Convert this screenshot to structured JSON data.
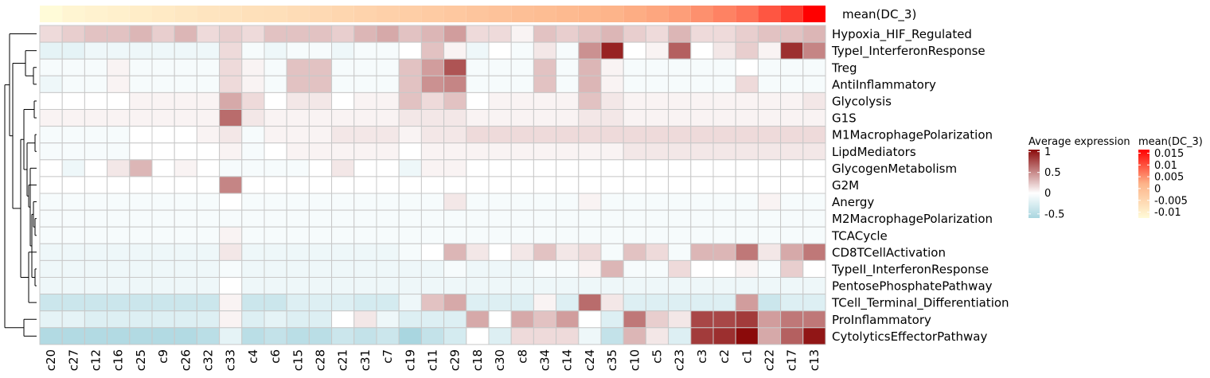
{
  "chart_data": {
    "type": "heatmap",
    "annotation_row_label": "mean(DC_3)",
    "columns": [
      "c20",
      "c27",
      "c12",
      "c16",
      "c25",
      "c9",
      "c26",
      "c32",
      "c33",
      "c4",
      "c6",
      "c15",
      "c28",
      "c21",
      "c31",
      "c7",
      "c19",
      "c11",
      "c29",
      "c18",
      "c30",
      "c8",
      "c34",
      "c14",
      "c24",
      "c35",
      "c10",
      "c5",
      "c23",
      "c3",
      "c2",
      "c1",
      "c22",
      "c17",
      "c13"
    ],
    "rows": [
      "Hypoxia_HIF_Regulated",
      "TypeI_InterferonResponse",
      "Treg",
      "AntiInflammatory",
      "Glycolysis",
      "G1S",
      "M1MacrophagePolarization",
      "LipdMediators",
      "GlycogenMetabolism",
      "G2M",
      "Anergy",
      "M2MacrophagePolarization",
      "TCACycle",
      "CD8TCellActivation",
      "TypeII_InterferonResponse",
      "PentosePhosphatePathway",
      "TCell_Terminal_Differentiation",
      "ProInflammatory",
      "CytolyticsEffectorPathway"
    ],
    "annotation_values": [
      -0.012,
      -0.011,
      -0.0105,
      -0.01,
      -0.0095,
      -0.009,
      -0.0085,
      -0.008,
      -0.0078,
      -0.0072,
      -0.007,
      -0.0065,
      -0.006,
      -0.0055,
      -0.005,
      -0.0045,
      -0.004,
      -0.0035,
      -0.003,
      -0.0025,
      -0.002,
      -0.0015,
      -0.001,
      -0.0005,
      0.0,
      0.0005,
      0.001,
      0.0015,
      0.002,
      0.003,
      0.004,
      0.005,
      0.007,
      0.009,
      0.013
    ],
    "values": [
      [
        0.15,
        0.2,
        0.25,
        0.25,
        0.3,
        0.2,
        0.3,
        0.15,
        0.2,
        0.15,
        0.25,
        0.25,
        0.25,
        0.2,
        0.3,
        0.35,
        0.25,
        0.3,
        0.4,
        0.15,
        0.15,
        0.05,
        0.25,
        0.2,
        0.25,
        0.3,
        0.2,
        0.15,
        0.3,
        0.15,
        0.15,
        0.2,
        0.25,
        0.25,
        0.3
      ],
      [
        -0.15,
        -0.15,
        -0.1,
        -0.1,
        -0.1,
        -0.1,
        -0.1,
        -0.1,
        0.15,
        -0.05,
        -0.1,
        -0.05,
        -0.05,
        -0.1,
        -0.05,
        -0.05,
        0.0,
        0.25,
        0.05,
        -0.1,
        0.0,
        -0.05,
        0.1,
        -0.05,
        0.45,
        0.9,
        0.0,
        0.05,
        0.65,
        0.0,
        0.1,
        0.2,
        0.05,
        0.85,
        0.5
      ],
      [
        -0.05,
        -0.05,
        -0.05,
        0.05,
        -0.05,
        -0.05,
        -0.05,
        -0.05,
        0.15,
        0.05,
        -0.05,
        0.25,
        0.25,
        -0.05,
        -0.05,
        -0.05,
        0.25,
        0.4,
        0.7,
        -0.05,
        -0.05,
        -0.05,
        0.25,
        -0.05,
        0.3,
        0.05,
        -0.05,
        -0.05,
        -0.05,
        -0.05,
        -0.05,
        0.0,
        -0.05,
        -0.05,
        -0.05
      ],
      [
        -0.1,
        -0.05,
        -0.05,
        0.05,
        -0.05,
        -0.05,
        -0.05,
        -0.05,
        0.15,
        0.05,
        -0.05,
        0.25,
        0.25,
        -0.05,
        -0.05,
        -0.05,
        0.25,
        0.45,
        0.5,
        -0.05,
        -0.05,
        -0.05,
        0.25,
        -0.05,
        0.3,
        0.05,
        -0.05,
        -0.05,
        -0.05,
        -0.05,
        -0.05,
        0.15,
        -0.05,
        -0.05,
        -0.05
      ],
      [
        0.0,
        0.0,
        0.0,
        0.0,
        0.05,
        0.05,
        0.05,
        0.05,
        0.35,
        0.15,
        0.0,
        0.1,
        0.1,
        0.0,
        0.05,
        0.05,
        0.25,
        0.15,
        0.25,
        0.0,
        0.05,
        0.05,
        0.05,
        0.05,
        0.25,
        0.1,
        0.05,
        0.05,
        0.05,
        0.05,
        0.05,
        0.05,
        0.05,
        0.05,
        0.1
      ],
      [
        0.05,
        0.05,
        0.05,
        0.05,
        0.05,
        0.05,
        0.05,
        0.05,
        0.6,
        0.1,
        0.05,
        0.05,
        0.05,
        0.05,
        0.05,
        0.05,
        0.1,
        0.1,
        0.1,
        0.05,
        0.05,
        0.05,
        0.05,
        0.05,
        0.1,
        0.1,
        0.05,
        0.05,
        0.05,
        0.05,
        0.05,
        0.05,
        0.05,
        0.05,
        0.05
      ],
      [
        -0.05,
        -0.05,
        -0.05,
        -0.05,
        0.0,
        0.0,
        0.0,
        0.05,
        0.1,
        -0.05,
        0.05,
        0.05,
        0.05,
        0.1,
        0.1,
        0.1,
        0.05,
        0.1,
        0.1,
        0.15,
        0.15,
        0.15,
        0.15,
        0.15,
        0.15,
        0.15,
        0.15,
        0.15,
        0.15,
        0.15,
        0.15,
        0.15,
        0.15,
        0.15,
        0.15
      ],
      [
        -0.05,
        -0.05,
        -0.05,
        -0.05,
        0.0,
        0.0,
        0.0,
        0.0,
        0.05,
        -0.05,
        0.0,
        0.05,
        0.05,
        0.05,
        0.05,
        0.05,
        0.0,
        0.05,
        0.05,
        0.05,
        0.05,
        0.05,
        0.05,
        0.05,
        0.05,
        0.05,
        0.1,
        0.1,
        0.1,
        0.1,
        0.1,
        0.1,
        0.1,
        0.1,
        0.1
      ],
      [
        0.0,
        -0.1,
        0.0,
        0.1,
        0.3,
        0.0,
        0.05,
        0.0,
        -0.05,
        -0.05,
        -0.05,
        -0.05,
        0.0,
        0.1,
        0.0,
        0.0,
        -0.1,
        0.05,
        0.05,
        0.0,
        0.0,
        0.0,
        0.0,
        0.0,
        0.0,
        0.0,
        0.0,
        0.0,
        0.0,
        0.0,
        0.0,
        0.0,
        0.0,
        0.0,
        0.0
      ],
      [
        0.0,
        0.0,
        0.0,
        0.0,
        0.0,
        0.0,
        0.0,
        0.0,
        0.5,
        0.0,
        0.0,
        0.0,
        0.0,
        0.0,
        0.0,
        0.0,
        0.0,
        0.0,
        0.0,
        0.0,
        0.0,
        0.0,
        0.0,
        0.0,
        0.0,
        0.0,
        0.0,
        0.0,
        0.0,
        0.0,
        0.0,
        0.0,
        0.0,
        0.0,
        0.0
      ],
      [
        -0.05,
        -0.05,
        -0.05,
        -0.05,
        -0.05,
        -0.05,
        -0.05,
        -0.05,
        0.0,
        -0.05,
        -0.05,
        -0.05,
        -0.05,
        -0.05,
        -0.05,
        -0.05,
        -0.05,
        -0.05,
        0.1,
        -0.05,
        -0.05,
        -0.05,
        -0.05,
        -0.05,
        0.05,
        -0.05,
        -0.05,
        -0.05,
        -0.05,
        -0.05,
        -0.05,
        -0.05,
        0.05,
        -0.05,
        -0.05
      ],
      [
        -0.05,
        -0.05,
        -0.05,
        -0.05,
        -0.05,
        -0.05,
        -0.05,
        -0.05,
        -0.05,
        -0.05,
        -0.05,
        -0.05,
        -0.05,
        -0.05,
        -0.05,
        -0.05,
        -0.05,
        -0.05,
        -0.05,
        -0.05,
        -0.05,
        -0.05,
        -0.05,
        -0.05,
        -0.05,
        -0.05,
        -0.05,
        -0.05,
        -0.05,
        -0.05,
        -0.05,
        -0.05,
        -0.05,
        -0.05,
        -0.05
      ],
      [
        -0.05,
        -0.05,
        -0.05,
        -0.05,
        -0.05,
        -0.05,
        -0.05,
        -0.05,
        0.05,
        -0.05,
        -0.05,
        -0.05,
        -0.05,
        -0.05,
        -0.05,
        -0.05,
        -0.05,
        -0.05,
        -0.05,
        -0.05,
        -0.05,
        -0.05,
        -0.05,
        -0.05,
        -0.05,
        -0.05,
        -0.05,
        -0.05,
        -0.05,
        -0.05,
        -0.05,
        -0.05,
        -0.05,
        -0.05,
        -0.05
      ],
      [
        -0.1,
        -0.1,
        -0.1,
        -0.1,
        -0.1,
        -0.1,
        -0.1,
        -0.1,
        0.1,
        -0.1,
        -0.1,
        -0.1,
        -0.1,
        -0.1,
        -0.1,
        -0.1,
        -0.05,
        0.0,
        0.3,
        0.1,
        0.0,
        0.1,
        0.25,
        0.1,
        0.15,
        -0.05,
        0.25,
        0.15,
        -0.05,
        0.3,
        0.3,
        0.55,
        0.1,
        0.35,
        0.55
      ],
      [
        -0.1,
        -0.1,
        -0.1,
        -0.1,
        -0.1,
        -0.1,
        -0.1,
        -0.1,
        -0.05,
        -0.1,
        -0.1,
        -0.1,
        -0.1,
        -0.1,
        -0.1,
        -0.1,
        -0.1,
        -0.1,
        -0.05,
        -0.1,
        -0.1,
        -0.1,
        -0.05,
        -0.05,
        0.05,
        0.3,
        -0.05,
        -0.05,
        0.15,
        0.0,
        0.0,
        0.05,
        -0.05,
        0.2,
        0.0
      ],
      [
        -0.1,
        -0.1,
        -0.1,
        -0.1,
        -0.1,
        -0.1,
        -0.1,
        -0.1,
        0.0,
        -0.1,
        -0.1,
        -0.1,
        -0.1,
        -0.1,
        -0.1,
        -0.1,
        -0.1,
        -0.1,
        -0.1,
        -0.1,
        -0.1,
        -0.1,
        -0.1,
        -0.1,
        -0.1,
        -0.1,
        -0.1,
        -0.1,
        -0.1,
        -0.1,
        -0.1,
        -0.1,
        -0.1,
        -0.1,
        -0.1
      ],
      [
        -0.3,
        -0.3,
        -0.3,
        -0.3,
        -0.3,
        -0.3,
        -0.3,
        -0.3,
        0.05,
        -0.3,
        -0.3,
        -0.2,
        -0.2,
        -0.2,
        -0.25,
        -0.25,
        -0.1,
        0.25,
        0.35,
        -0.2,
        -0.2,
        -0.2,
        0.05,
        -0.2,
        0.6,
        0.1,
        -0.2,
        -0.2,
        -0.2,
        -0.2,
        -0.2,
        0.4,
        -0.3,
        -0.2,
        -0.2
      ],
      [
        -0.15,
        -0.15,
        -0.2,
        -0.2,
        -0.2,
        -0.2,
        -0.2,
        -0.2,
        0.05,
        -0.2,
        -0.15,
        -0.2,
        -0.2,
        0.0,
        0.1,
        -0.1,
        -0.2,
        -0.2,
        -0.2,
        0.35,
        0.0,
        0.35,
        0.25,
        0.4,
        0.0,
        -0.2,
        0.55,
        0.2,
        0.1,
        0.75,
        0.75,
        0.8,
        0.4,
        0.55,
        0.55
      ],
      [
        -0.45,
        -0.45,
        -0.45,
        -0.45,
        -0.45,
        -0.45,
        -0.45,
        -0.4,
        -0.15,
        -0.4,
        -0.35,
        -0.4,
        -0.4,
        -0.3,
        -0.35,
        -0.3,
        -0.5,
        -0.35,
        -0.25,
        0.0,
        -0.2,
        0.15,
        0.15,
        0.15,
        -0.1,
        -0.35,
        0.3,
        0.1,
        -0.2,
        0.8,
        0.85,
        1.0,
        0.35,
        0.65,
        0.95
      ]
    ],
    "legend_expression": {
      "title": "Average expression",
      "ticks": [
        1,
        0.5,
        0,
        -0.5
      ],
      "tick_labels": [
        "1",
        "0.5",
        "0",
        "-0.5"
      ],
      "range": [
        -0.6,
        1.05
      ]
    },
    "legend_annotation": {
      "title": "mean(DC_3)",
      "ticks": [
        0.015,
        0.01,
        0.005,
        0,
        -0.005,
        -0.01
      ],
      "tick_labels": [
        "0.015",
        "0.01",
        "0.005",
        "0",
        "-0.005",
        "-0.01"
      ],
      "range": [
        -0.0125,
        0.0165
      ]
    },
    "colors": {
      "expression_low": "#a9d6e0",
      "expression_mid": "#ffffff",
      "expression_high": "#8b0a0a",
      "annotation_low": "#fffbd8",
      "annotation_mid": "#fdb48a",
      "annotation_high": "#ff0000",
      "cell_border": "#c8c8c8"
    }
  }
}
